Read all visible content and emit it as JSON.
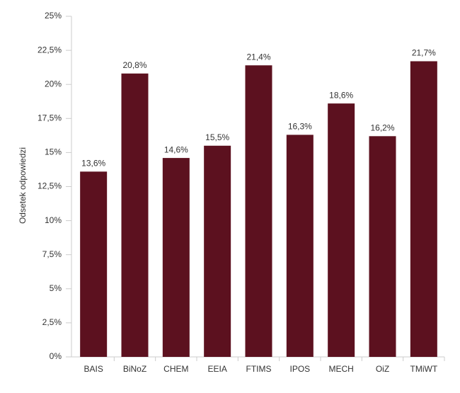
{
  "chart_data": {
    "type": "bar",
    "y_label": "Odsetek odpowiedzi",
    "categories": [
      "BAIS",
      "BiNoZ",
      "CHEM",
      "EEIA",
      "FTIMS",
      "IPOS",
      "MECH",
      "OiZ",
      "TMiWT"
    ],
    "values": [
      13.6,
      20.8,
      14.6,
      15.5,
      21.4,
      16.3,
      18.6,
      16.2,
      21.7
    ],
    "value_labels": [
      "13,6%",
      "20,8%",
      "14,6%",
      "15,5%",
      "21,4%",
      "16,3%",
      "18,6%",
      "16,2%",
      "21,7%"
    ],
    "color": "#5c111f",
    "ylim": [
      0,
      25
    ],
    "yticks": [
      {
        "value": 0,
        "label": "0%"
      },
      {
        "value": 2.5,
        "label": "2,5%"
      },
      {
        "value": 5,
        "label": "5%"
      },
      {
        "value": 7.5,
        "label": "7,5%"
      },
      {
        "value": 10,
        "label": "10%"
      },
      {
        "value": 12.5,
        "label": "12,5%"
      },
      {
        "value": 15,
        "label": "15%"
      },
      {
        "value": 17.5,
        "label": "17,5%"
      },
      {
        "value": 20,
        "label": "20%"
      },
      {
        "value": 22.5,
        "label": "22,5%"
      },
      {
        "value": 25,
        "label": "25%"
      }
    ],
    "grid": false
  }
}
